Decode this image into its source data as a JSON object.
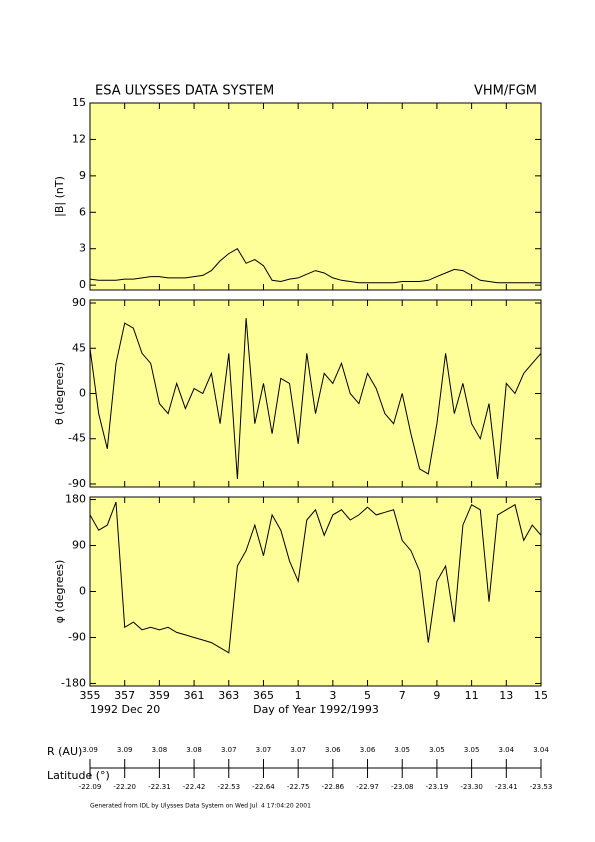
{
  "header": {
    "title": "ESA ULYSSES DATA SYSTEM",
    "instrument": "VHM/FGM"
  },
  "chart_data": [
    {
      "type": "line",
      "ylabel": "|B| (nT)",
      "color": "#000000",
      "background": "#ffff99",
      "x": [
        355,
        355.5,
        356,
        356.5,
        357,
        357.5,
        358,
        358.5,
        359,
        359.5,
        360,
        360.5,
        361,
        361.5,
        362,
        362.5,
        363,
        363.5,
        364,
        364.5,
        365,
        365.5,
        366,
        366.5,
        367,
        367.5,
        368,
        368.5,
        369,
        369.5,
        370,
        370.5,
        371,
        371.5,
        372,
        372.5,
        373,
        373.5,
        374,
        374.5,
        375,
        375.5,
        376,
        376.5,
        377,
        377.5,
        378,
        378.5,
        379,
        379.5,
        380,
        380.5,
        381
      ],
      "values": [
        0.5,
        0.4,
        0.4,
        0.4,
        0.5,
        0.5,
        0.6,
        0.7,
        0.7,
        0.6,
        0.6,
        0.6,
        0.7,
        0.8,
        1.2,
        2.0,
        2.6,
        3.0,
        1.8,
        2.1,
        1.6,
        0.4,
        0.3,
        0.5,
        0.6,
        0.9,
        1.2,
        1.0,
        0.6,
        0.4,
        0.3,
        0.2,
        0.2,
        0.2,
        0.2,
        0.2,
        0.3,
        0.3,
        0.3,
        0.4,
        0.7,
        1.0,
        1.3,
        1.2,
        0.8,
        0.4,
        0.3,
        0.2,
        0.2,
        0.2,
        0.2,
        0.2,
        0.2
      ],
      "xlim": [
        355,
        381
      ],
      "ylim": [
        -0.4,
        15
      ],
      "yticks": [
        0,
        3,
        6,
        9,
        12,
        15
      ]
    },
    {
      "type": "line",
      "ylabel": "θ (degrees)",
      "color": "#000000",
      "background": "#ffff99",
      "x": [
        355,
        355.5,
        356,
        356.5,
        357,
        357.5,
        358,
        358.5,
        359,
        359.5,
        360,
        360.5,
        361,
        361.5,
        362,
        362.5,
        363,
        363.5,
        364,
        364.5,
        365,
        365.5,
        366,
        366.5,
        367,
        367.5,
        368,
        368.5,
        369,
        369.5,
        370,
        370.5,
        371,
        371.5,
        372,
        372.5,
        373,
        373.5,
        374,
        374.5,
        375,
        375.5,
        376,
        376.5,
        377,
        377.5,
        378,
        378.5,
        379,
        379.5,
        380,
        380.5,
        381
      ],
      "values": [
        45,
        -20,
        -55,
        30,
        70,
        65,
        40,
        30,
        -10,
        -20,
        10,
        -15,
        5,
        0,
        20,
        -30,
        40,
        -85,
        75,
        -30,
        10,
        -40,
        15,
        10,
        -50,
        40,
        -20,
        20,
        10,
        30,
        0,
        -10,
        20,
        5,
        -20,
        -30,
        0,
        -40,
        -75,
        -80,
        -30,
        40,
        -20,
        10,
        -30,
        -45,
        -10,
        -85,
        10,
        0,
        20,
        30,
        40
      ],
      "xlim": [
        355,
        381
      ],
      "ylim": [
        -93,
        93
      ],
      "yticks": [
        -90,
        -45,
        0,
        45,
        90
      ]
    },
    {
      "type": "line",
      "ylabel": "φ (degrees)",
      "color": "#000000",
      "background": "#ffff99",
      "x": [
        355,
        355.5,
        356,
        356.5,
        357,
        357.5,
        358,
        358.5,
        359,
        359.5,
        360,
        360.5,
        361,
        361.5,
        362,
        362.5,
        363,
        363.5,
        364,
        364.5,
        365,
        365.5,
        366,
        366.5,
        367,
        367.5,
        368,
        368.5,
        369,
        369.5,
        370,
        370.5,
        371,
        371.5,
        372,
        372.5,
        373,
        373.5,
        374,
        374.5,
        375,
        375.5,
        376,
        376.5,
        377,
        377.5,
        378,
        378.5,
        379,
        379.5,
        380,
        380.5,
        381
      ],
      "values": [
        150,
        120,
        130,
        175,
        -70,
        -60,
        -75,
        -70,
        -75,
        -70,
        -80,
        -85,
        -90,
        -95,
        -100,
        -110,
        -120,
        50,
        80,
        130,
        70,
        150,
        120,
        60,
        20,
        140,
        160,
        110,
        150,
        160,
        140,
        150,
        165,
        150,
        155,
        160,
        100,
        80,
        40,
        -100,
        20,
        50,
        -60,
        130,
        170,
        160,
        -20,
        150,
        160,
        170,
        100,
        130,
        110
      ],
      "xlim": [
        355,
        381
      ],
      "ylim": [
        -185,
        185
      ],
      "yticks": [
        -180,
        -90,
        0,
        90,
        180
      ],
      "xticks": [
        355,
        357,
        359,
        361,
        363,
        365,
        {
          "value": 367,
          "label": "1"
        },
        {
          "value": 369,
          "label": "3"
        },
        {
          "value": 371,
          "label": "5"
        },
        {
          "value": 373,
          "label": "7"
        },
        {
          "value": 375,
          "label": "9"
        },
        {
          "value": 377,
          "label": "11"
        },
        {
          "value": 379,
          "label": "13"
        },
        {
          "value": 381,
          "label": "15"
        }
      ],
      "xlabel": "Day of Year 1992/1993",
      "start_date": "1992 Dec 20"
    }
  ],
  "ephemeris": {
    "r_label": "R (AU)",
    "lat_label": "Latitude (°)",
    "r": [
      "3.09",
      "3.09",
      "3.08",
      "3.08",
      "3.07",
      "3.07",
      "3.07",
      "3.06",
      "3.06",
      "3.05",
      "3.05",
      "3.05",
      "3.04",
      "3.04"
    ],
    "latitude": [
      "-22.09",
      "-22.20",
      "-22.31",
      "-22.42",
      "-22.53",
      "-22.64",
      "-22.75",
      "-22.86",
      "-22.97",
      "-23.08",
      "-23.19",
      "-23.30",
      "-23.41",
      "-23.53"
    ]
  },
  "footer": "Generated from IDL by Ulysses Data System on Wed Jul  4 17:04:20 2001"
}
